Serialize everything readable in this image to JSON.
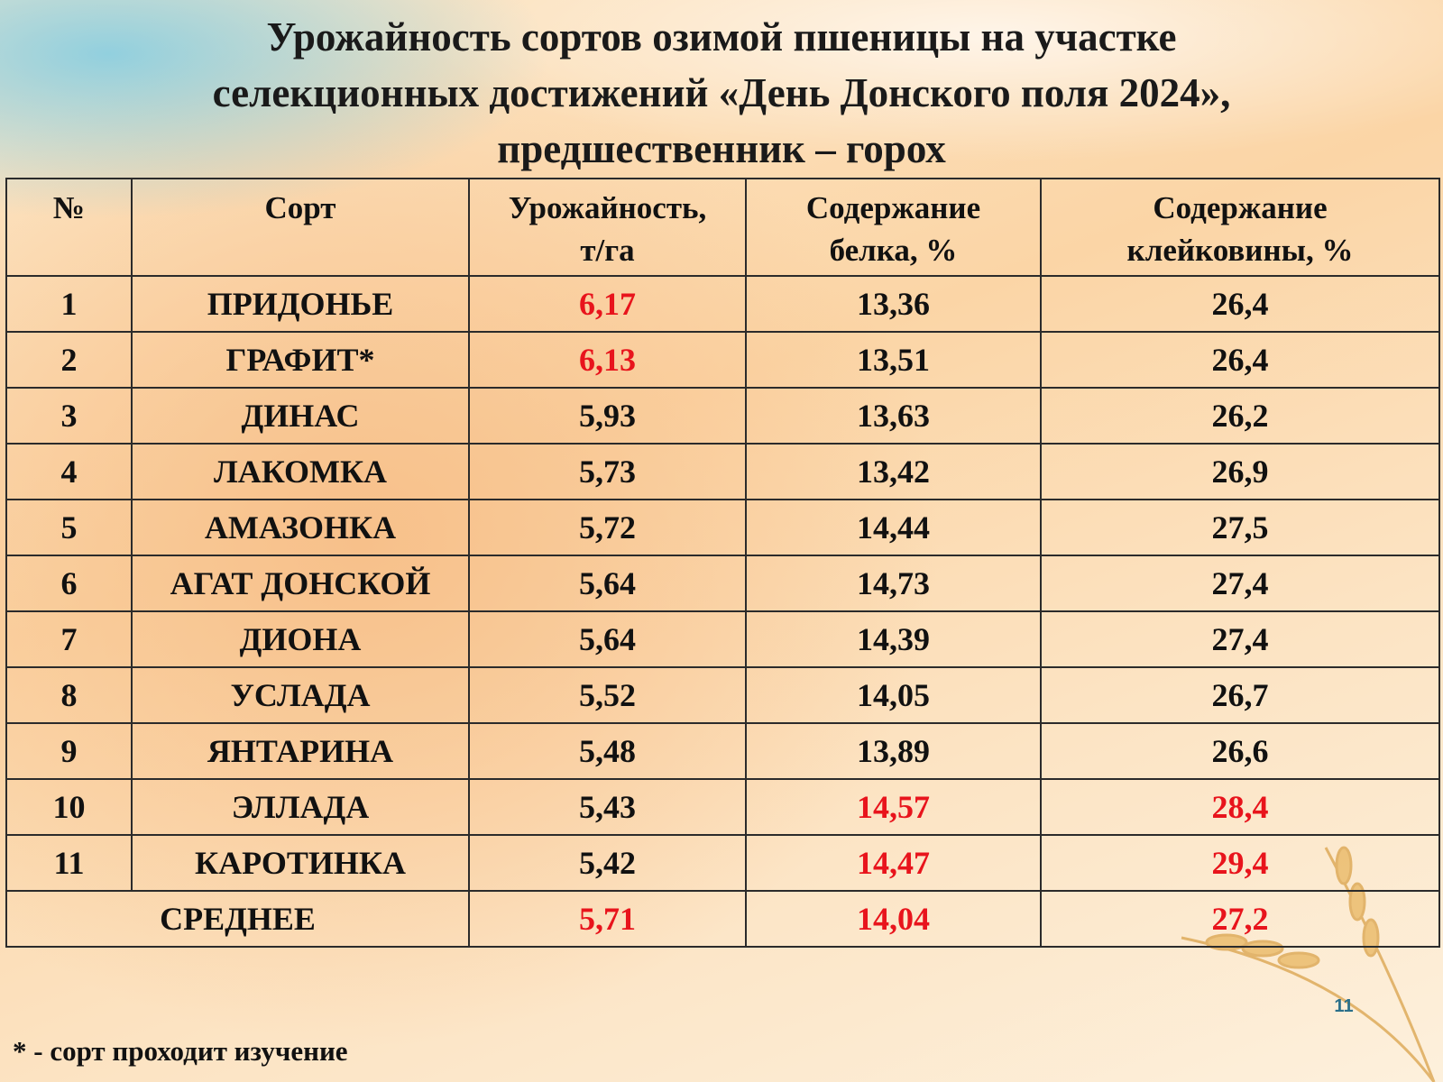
{
  "title": [
    "Урожайность сортов озимой пшеницы на участке",
    "селекционных достижений «День Донского поля 2024»,",
    "предшественник – горох"
  ],
  "table": {
    "header": [
      [
        "№"
      ],
      [
        "Сорт"
      ],
      [
        "Урожайность,",
        "т/га"
      ],
      [
        "Содержание",
        "белка, %"
      ],
      [
        "Содержание",
        "клейковины, %"
      ]
    ],
    "rows": [
      [
        "1",
        "ПРИДОНЬЕ",
        {
          "text": "6,17",
          "color": "#e8141c"
        },
        "13,36",
        "26,4"
      ],
      [
        "2",
        "ГРАФИТ*",
        {
          "text": "6,13",
          "color": "#e8141c"
        },
        "13,51",
        "26,4"
      ],
      [
        "3",
        "ДИНАС",
        "5,93",
        "13,63",
        "26,2"
      ],
      [
        "4",
        "ЛАКОМКА",
        "5,73",
        "13,42",
        "26,9"
      ],
      [
        "5",
        "АМАЗОНКА",
        "5,72",
        "14,44",
        "27,5"
      ],
      [
        "6",
        "АГАТ ДОНСКОЙ",
        "5,64",
        "14,73",
        "27,4"
      ],
      [
        "7",
        "ДИОНА",
        "5,64",
        "14,39",
        "27,4"
      ],
      [
        "8",
        "УСЛАДА",
        "5,52",
        "14,05",
        "26,7"
      ],
      [
        "9",
        "ЯНТАРИНА",
        "5,48",
        "13,89",
        "26,6"
      ],
      [
        "10",
        "ЭЛЛАДА",
        "5,43",
        {
          "text": "14,57",
          "color": "#e8141c"
        },
        {
          "text": "28,4",
          "color": "#e8141c"
        }
      ],
      [
        "11",
        "КАРОТИНКА",
        "5,42",
        {
          "text": "14,47",
          "color": "#e8141c"
        },
        {
          "text": "29,4",
          "color": "#e8141c"
        }
      ]
    ],
    "average": {
      "label": "СРЕДНЕЕ",
      "values": [
        {
          "text": "5,71",
          "color": "#e8141c"
        },
        {
          "text": "14,04",
          "color": "#e8141c"
        },
        {
          "text": "27,2",
          "color": "#e8141c"
        }
      ]
    }
  },
  "page_number": "11",
  "footnote": "* - сорт проходит изучение"
}
